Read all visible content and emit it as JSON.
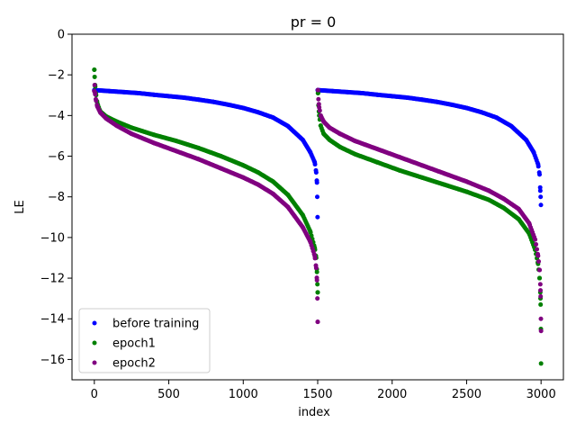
{
  "chart_data": {
    "type": "scatter",
    "title": "pr = 0",
    "xlabel": "index",
    "ylabel": "LE",
    "xlim": [
      -150,
      3150
    ],
    "ylim": [
      -17,
      0
    ],
    "xticks": [
      0,
      500,
      1000,
      1500,
      2000,
      2500,
      3000
    ],
    "yticks": [
      0,
      -2,
      -4,
      -6,
      -8,
      -10,
      -12,
      -14,
      -16
    ],
    "legend_position": "lower-left",
    "grid": false,
    "series": [
      {
        "name": "before training",
        "color": "#0000ff",
        "points": [
          [
            0,
            -2.75
          ],
          [
            100,
            -2.8
          ],
          [
            200,
            -2.85
          ],
          [
            300,
            -2.9
          ],
          [
            400,
            -2.98
          ],
          [
            500,
            -3.05
          ],
          [
            600,
            -3.12
          ],
          [
            700,
            -3.22
          ],
          [
            800,
            -3.33
          ],
          [
            900,
            -3.47
          ],
          [
            1000,
            -3.63
          ],
          [
            1100,
            -3.84
          ],
          [
            1200,
            -4.1
          ],
          [
            1300,
            -4.52
          ],
          [
            1400,
            -5.2
          ],
          [
            1450,
            -5.8
          ],
          [
            1480,
            -6.3
          ],
          [
            1490,
            -6.8
          ],
          [
            1495,
            -7.3
          ],
          [
            1497,
            -8.0
          ],
          [
            1499,
            -9.0
          ],
          [
            1500,
            -2.75
          ],
          [
            1600,
            -2.8
          ],
          [
            1700,
            -2.85
          ],
          [
            1800,
            -2.9
          ],
          [
            1900,
            -2.98
          ],
          [
            2000,
            -3.05
          ],
          [
            2100,
            -3.12
          ],
          [
            2200,
            -3.22
          ],
          [
            2300,
            -3.33
          ],
          [
            2400,
            -3.47
          ],
          [
            2500,
            -3.63
          ],
          [
            2600,
            -3.84
          ],
          [
            2700,
            -4.1
          ],
          [
            2800,
            -4.52
          ],
          [
            2900,
            -5.2
          ],
          [
            2950,
            -5.8
          ],
          [
            2980,
            -6.4
          ],
          [
            2990,
            -6.9
          ],
          [
            2995,
            -7.7
          ],
          [
            2997,
            -8.0
          ],
          [
            2999,
            -8.4
          ]
        ]
      },
      {
        "name": "epoch1",
        "color": "#008000",
        "points": [
          [
            0,
            -1.75
          ],
          [
            2,
            -2.1
          ],
          [
            5,
            -2.5
          ],
          [
            10,
            -2.9
          ],
          [
            20,
            -3.4
          ],
          [
            40,
            -3.8
          ],
          [
            80,
            -4.05
          ],
          [
            150,
            -4.3
          ],
          [
            250,
            -4.6
          ],
          [
            400,
            -4.95
          ],
          [
            550,
            -5.25
          ],
          [
            700,
            -5.6
          ],
          [
            850,
            -6.0
          ],
          [
            1000,
            -6.45
          ],
          [
            1100,
            -6.8
          ],
          [
            1200,
            -7.25
          ],
          [
            1300,
            -7.9
          ],
          [
            1400,
            -8.9
          ],
          [
            1450,
            -9.7
          ],
          [
            1480,
            -10.5
          ],
          [
            1490,
            -11.0
          ],
          [
            1495,
            -11.7
          ],
          [
            1498,
            -12.3
          ],
          [
            1500,
            -12.7
          ],
          [
            1502,
            -2.9
          ],
          [
            1505,
            -3.5
          ],
          [
            1510,
            -4.0
          ],
          [
            1520,
            -4.5
          ],
          [
            1540,
            -4.9
          ],
          [
            1580,
            -5.2
          ],
          [
            1650,
            -5.55
          ],
          [
            1750,
            -5.9
          ],
          [
            1900,
            -6.3
          ],
          [
            2050,
            -6.7
          ],
          [
            2200,
            -7.05
          ],
          [
            2350,
            -7.4
          ],
          [
            2500,
            -7.75
          ],
          [
            2650,
            -8.15
          ],
          [
            2750,
            -8.55
          ],
          [
            2850,
            -9.1
          ],
          [
            2920,
            -9.8
          ],
          [
            2960,
            -10.6
          ],
          [
            2980,
            -11.3
          ],
          [
            2990,
            -12.0
          ],
          [
            2995,
            -12.7
          ],
          [
            2997,
            -13.3
          ],
          [
            2999,
            -14.5
          ],
          [
            3000,
            -16.2
          ]
        ]
      },
      {
        "name": "epoch2",
        "color": "#800080",
        "points": [
          [
            0,
            -2.8
          ],
          [
            2,
            -2.5
          ],
          [
            5,
            -2.9
          ],
          [
            10,
            -3.2
          ],
          [
            20,
            -3.55
          ],
          [
            40,
            -3.85
          ],
          [
            80,
            -4.15
          ],
          [
            150,
            -4.5
          ],
          [
            250,
            -4.9
          ],
          [
            400,
            -5.35
          ],
          [
            550,
            -5.75
          ],
          [
            700,
            -6.15
          ],
          [
            850,
            -6.6
          ],
          [
            1000,
            -7.05
          ],
          [
            1100,
            -7.4
          ],
          [
            1200,
            -7.85
          ],
          [
            1300,
            -8.5
          ],
          [
            1400,
            -9.5
          ],
          [
            1450,
            -10.2
          ],
          [
            1480,
            -10.9
          ],
          [
            1490,
            -11.5
          ],
          [
            1495,
            -12.1
          ],
          [
            1498,
            -13.0
          ],
          [
            1500,
            -14.15
          ],
          [
            1502,
            -2.75
          ],
          [
            1505,
            -3.2
          ],
          [
            1510,
            -3.6
          ],
          [
            1520,
            -4.0
          ],
          [
            1540,
            -4.3
          ],
          [
            1580,
            -4.6
          ],
          [
            1650,
            -4.9
          ],
          [
            1750,
            -5.25
          ],
          [
            1900,
            -5.65
          ],
          [
            2050,
            -6.05
          ],
          [
            2200,
            -6.45
          ],
          [
            2350,
            -6.85
          ],
          [
            2500,
            -7.25
          ],
          [
            2650,
            -7.7
          ],
          [
            2750,
            -8.1
          ],
          [
            2850,
            -8.6
          ],
          [
            2920,
            -9.3
          ],
          [
            2960,
            -10.1
          ],
          [
            2980,
            -10.9
          ],
          [
            2990,
            -11.6
          ],
          [
            2995,
            -12.3
          ],
          [
            2997,
            -12.9
          ],
          [
            2999,
            -14.0
          ],
          [
            3000,
            -14.6
          ]
        ]
      }
    ]
  }
}
